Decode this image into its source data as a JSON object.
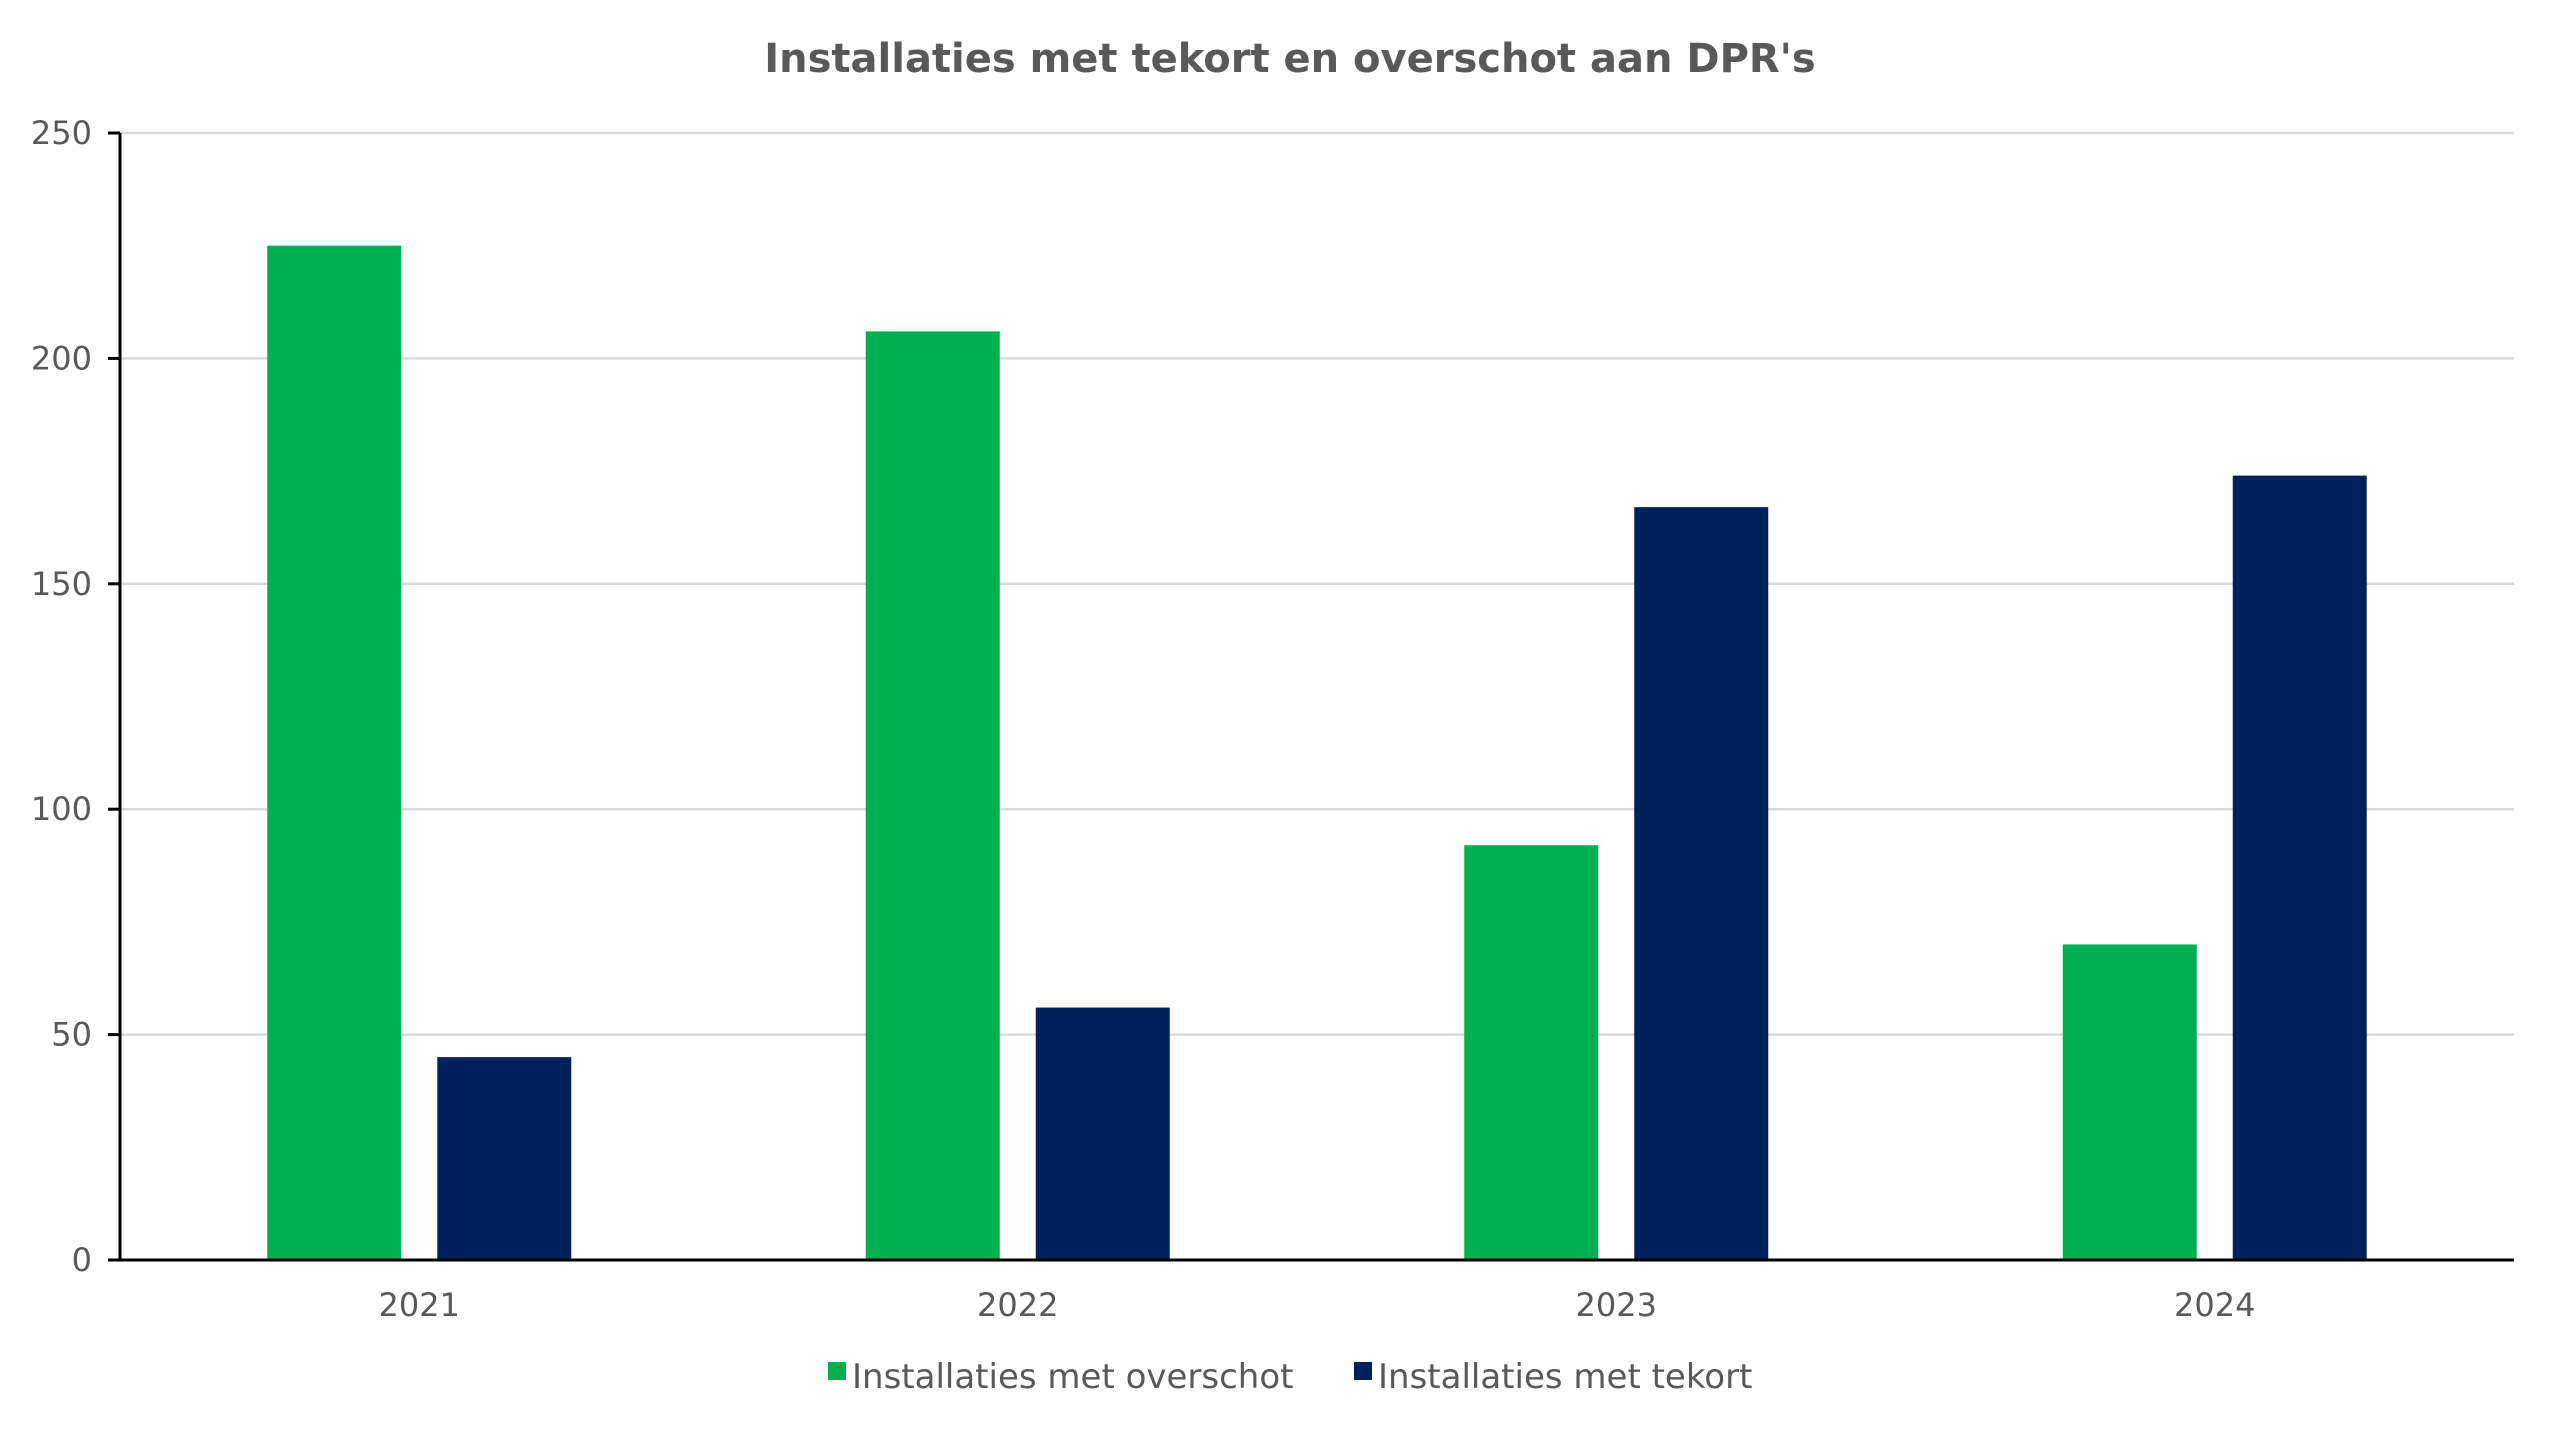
{
  "chart_data": {
    "type": "bar",
    "title": "Installaties met tekort en overschot aan DPR's",
    "xlabel": "",
    "ylabel": "",
    "categories": [
      "2021",
      "2022",
      "2023",
      "2024"
    ],
    "series": [
      {
        "name": "Installaties met overschot",
        "color": "#00AF50",
        "values": [
          225,
          206,
          92,
          70
        ]
      },
      {
        "name": "Installaties met tekort",
        "color": "#00205B",
        "values": [
          45,
          56,
          167,
          174
        ]
      }
    ],
    "ylim": [
      0,
      250
    ],
    "yticks": [
      0,
      50,
      100,
      150,
      200,
      250
    ],
    "ytick_labels": [
      "0",
      "50",
      "100",
      "150",
      "200",
      "250"
    ],
    "grid": true,
    "legend_position": "bottom"
  }
}
